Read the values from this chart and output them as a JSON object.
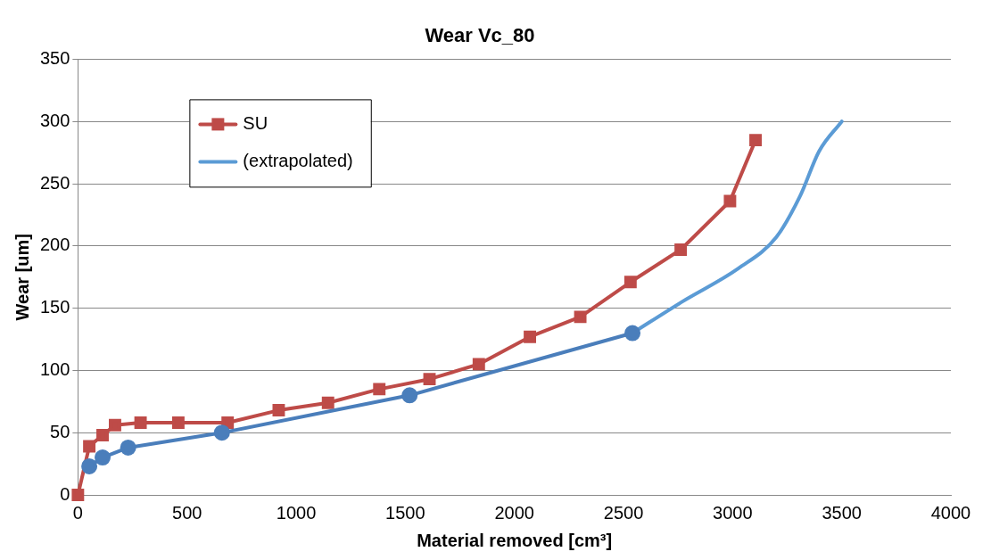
{
  "chart_data": {
    "type": "line",
    "title": "Wear Vc_80",
    "xlabel": "Material removed [cm³]",
    "ylabel": "Wear [um]",
    "xlim": [
      0,
      4000
    ],
    "xticks": [
      0,
      500,
      1000,
      1500,
      2000,
      2500,
      3000,
      3500,
      4000
    ],
    "ylim": [
      0,
      350
    ],
    "yticks": [
      0,
      50,
      100,
      150,
      200,
      250,
      300,
      350
    ],
    "grid": "y",
    "legend": "top left",
    "series": [
      {
        "color": "#4a7ebb",
        "marker": "circle",
        "x": [
          52,
          113,
          230,
          660,
          1520,
          2541
        ],
        "values": [
          23,
          30,
          38,
          50,
          80,
          130
        ]
      },
      {
        "name": "SU",
        "color": "#be4b48",
        "marker": "square",
        "x": [
          0,
          52,
          113,
          170,
          287,
          460,
          686,
          920,
          1146,
          1381,
          1611,
          1837,
          2071,
          2302,
          2532,
          2762,
          2988,
          3105
        ],
        "values": [
          0,
          39,
          48,
          56,
          58,
          58,
          58,
          68,
          74,
          85,
          93,
          105,
          127,
          143,
          171,
          197,
          236,
          285
        ]
      },
      {
        "name": "(extrapolated)",
        "color": "#5b9bd5",
        "marker": "none",
        "x": [
          2541,
          2767,
          3027,
          3200,
          3309,
          3396,
          3500
        ],
        "values": [
          130,
          155,
          182,
          207,
          240,
          276,
          300
        ]
      }
    ]
  }
}
